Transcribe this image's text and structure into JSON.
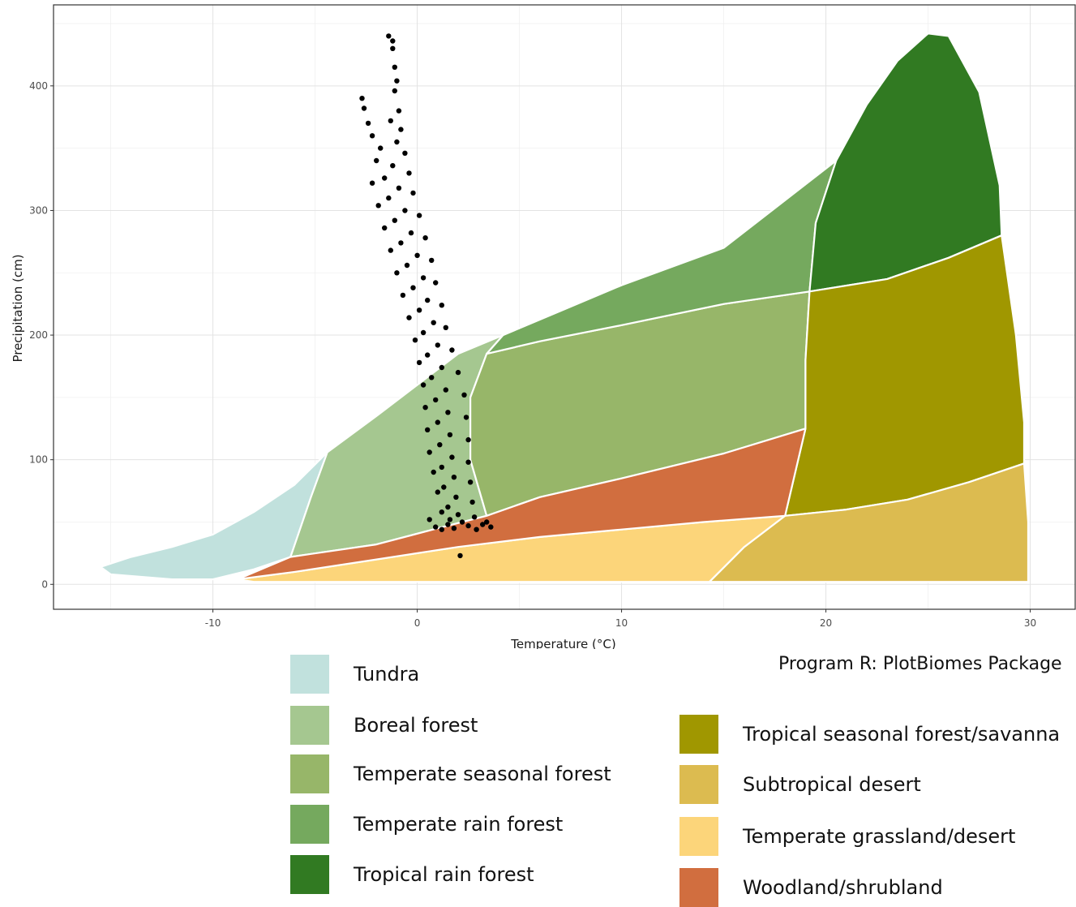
{
  "chart_data": {
    "type": "scatter",
    "xlabel": "Temperature (°C)",
    "ylabel": "Precipitation (cm)",
    "xlim": [
      -17.8,
      32.2
    ],
    "ylim": [
      -20,
      465
    ],
    "x_ticks": [
      -10,
      0,
      10,
      20,
      30
    ],
    "y_ticks": [
      0,
      100,
      200,
      300,
      400
    ],
    "grid": true,
    "legend_position": "bottom",
    "biomes": [
      {
        "name": "Tundra",
        "color": "#C1E1DD",
        "polygon": [
          [
            -15.5,
            14
          ],
          [
            -14,
            22
          ],
          [
            -12,
            30
          ],
          [
            -10,
            40
          ],
          [
            -8,
            58
          ],
          [
            -6,
            80
          ],
          [
            -4.4,
            106
          ],
          [
            -5.2,
            70
          ],
          [
            -6.2,
            22
          ],
          [
            -8,
            12
          ],
          [
            -10,
            4
          ],
          [
            -12,
            4
          ],
          [
            -15,
            8
          ]
        ]
      },
      {
        "name": "Boreal forest",
        "color": "#A5C790",
        "polygon": [
          [
            -4.4,
            106
          ],
          [
            -2,
            135
          ],
          [
            0,
            160
          ],
          [
            2,
            185
          ],
          [
            4.2,
            200
          ],
          [
            3.4,
            185
          ],
          [
            2.6,
            150
          ],
          [
            2.6,
            100
          ],
          [
            3.4,
            55
          ],
          [
            1,
            45
          ],
          [
            -2,
            32
          ],
          [
            -6.2,
            22
          ],
          [
            -5.2,
            70
          ]
        ]
      },
      {
        "name": "Temperate seasonal forest",
        "color": "#97B669",
        "polygon": [
          [
            3.4,
            185
          ],
          [
            6,
            195
          ],
          [
            10,
            208
          ],
          [
            15,
            225
          ],
          [
            19.2,
            235
          ],
          [
            19,
            180
          ],
          [
            19,
            125
          ],
          [
            15,
            105
          ],
          [
            10,
            85
          ],
          [
            6,
            70
          ],
          [
            3.4,
            55
          ],
          [
            2.6,
            100
          ],
          [
            2.6,
            150
          ]
        ]
      },
      {
        "name": "Temperate rain forest",
        "color": "#75A95E",
        "polygon": [
          [
            4.2,
            200
          ],
          [
            10,
            240
          ],
          [
            15,
            270
          ],
          [
            20.5,
            340
          ],
          [
            19.5,
            290
          ],
          [
            19.2,
            235
          ],
          [
            15,
            225
          ],
          [
            10,
            208
          ],
          [
            6,
            195
          ],
          [
            3.4,
            185
          ]
        ]
      },
      {
        "name": "Tropical rain forest",
        "color": "#317A22",
        "polygon": [
          [
            20.5,
            340
          ],
          [
            22,
            385
          ],
          [
            23.5,
            420
          ],
          [
            25,
            442
          ],
          [
            26,
            440
          ],
          [
            27.5,
            395
          ],
          [
            28.5,
            320
          ],
          [
            28.6,
            280
          ],
          [
            26,
            262
          ],
          [
            23,
            245
          ],
          [
            19.2,
            235
          ],
          [
            19.5,
            290
          ]
        ]
      },
      {
        "name": "Tropical seasonal forest/savanna",
        "color": "#A09700",
        "polygon": [
          [
            19.2,
            235
          ],
          [
            23,
            245
          ],
          [
            26,
            262
          ],
          [
            28.6,
            280
          ],
          [
            29.3,
            200
          ],
          [
            29.7,
            130
          ],
          [
            29.7,
            97
          ],
          [
            27,
            82
          ],
          [
            24,
            68
          ],
          [
            21,
            60
          ],
          [
            18,
            55
          ],
          [
            19,
            125
          ],
          [
            19,
            180
          ]
        ]
      },
      {
        "name": "Subtropical desert",
        "color": "#DCBB50",
        "polygon": [
          [
            18,
            55
          ],
          [
            21,
            60
          ],
          [
            24,
            68
          ],
          [
            27,
            82
          ],
          [
            29.7,
            97
          ],
          [
            29.9,
            50
          ],
          [
            29.9,
            2
          ],
          [
            25,
            2
          ],
          [
            20,
            2
          ],
          [
            14.3,
            2
          ],
          [
            16,
            30
          ]
        ]
      },
      {
        "name": "Temperate grassland/desert",
        "color": "#FCD57A",
        "polygon": [
          [
            -8.8,
            4
          ],
          [
            -6,
            10
          ],
          [
            -2,
            20
          ],
          [
            2,
            30
          ],
          [
            6,
            38
          ],
          [
            10,
            44
          ],
          [
            14,
            50
          ],
          [
            18,
            55
          ],
          [
            16,
            30
          ],
          [
            14.3,
            2
          ],
          [
            8,
            2
          ],
          [
            0,
            2
          ],
          [
            -8,
            2
          ]
        ]
      },
      {
        "name": "Woodland/shrubland",
        "color": "#D16E3F",
        "polygon": [
          [
            -8.8,
            4
          ],
          [
            -6.2,
            22
          ],
          [
            -2,
            32
          ],
          [
            1,
            45
          ],
          [
            3.4,
            55
          ],
          [
            6,
            70
          ],
          [
            10,
            85
          ],
          [
            15,
            105
          ],
          [
            19,
            125
          ],
          [
            18,
            55
          ],
          [
            14,
            50
          ],
          [
            10,
            44
          ],
          [
            6,
            38
          ],
          [
            2,
            30
          ],
          [
            -2,
            20
          ],
          [
            -6,
            10
          ]
        ]
      }
    ],
    "scatter": {
      "color": "#000000",
      "points": [
        [
          -1.4,
          440
        ],
        [
          -1.2,
          436
        ],
        [
          -1.2,
          430
        ],
        [
          -1.1,
          415
        ],
        [
          -1.0,
          404
        ],
        [
          -1.1,
          396
        ],
        [
          -2.7,
          390
        ],
        [
          -2.6,
          382
        ],
        [
          -0.9,
          380
        ],
        [
          -1.3,
          372
        ],
        [
          -2.4,
          370
        ],
        [
          -0.8,
          365
        ],
        [
          -2.2,
          360
        ],
        [
          -1.0,
          355
        ],
        [
          -1.8,
          350
        ],
        [
          -0.6,
          346
        ],
        [
          -2.0,
          340
        ],
        [
          -1.2,
          336
        ],
        [
          -0.4,
          330
        ],
        [
          -1.6,
          326
        ],
        [
          -2.2,
          322
        ],
        [
          -0.9,
          318
        ],
        [
          -0.2,
          314
        ],
        [
          -1.4,
          310
        ],
        [
          -1.9,
          304
        ],
        [
          -0.6,
          300
        ],
        [
          0.1,
          296
        ],
        [
          -1.1,
          292
        ],
        [
          -1.6,
          286
        ],
        [
          -0.3,
          282
        ],
        [
          0.4,
          278
        ],
        [
          -0.8,
          274
        ],
        [
          -1.3,
          268
        ],
        [
          0.0,
          264
        ],
        [
          0.7,
          260
        ],
        [
          -0.5,
          256
        ],
        [
          -1.0,
          250
        ],
        [
          0.3,
          246
        ],
        [
          0.9,
          242
        ],
        [
          -0.2,
          238
        ],
        [
          -0.7,
          232
        ],
        [
          0.5,
          228
        ],
        [
          1.2,
          224
        ],
        [
          0.1,
          220
        ],
        [
          -0.4,
          214
        ],
        [
          0.8,
          210
        ],
        [
          1.4,
          206
        ],
        [
          0.3,
          202
        ],
        [
          -0.1,
          196
        ],
        [
          1.0,
          192
        ],
        [
          1.7,
          188
        ],
        [
          0.5,
          184
        ],
        [
          0.1,
          178
        ],
        [
          1.2,
          174
        ],
        [
          2.0,
          170
        ],
        [
          0.7,
          166
        ],
        [
          0.3,
          160
        ],
        [
          1.4,
          156
        ],
        [
          2.3,
          152
        ],
        [
          0.9,
          148
        ],
        [
          0.4,
          142
        ],
        [
          1.5,
          138
        ],
        [
          2.4,
          134
        ],
        [
          1.0,
          130
        ],
        [
          0.5,
          124
        ],
        [
          1.6,
          120
        ],
        [
          2.5,
          116
        ],
        [
          1.1,
          112
        ],
        [
          0.6,
          106
        ],
        [
          1.7,
          102
        ],
        [
          2.5,
          98
        ],
        [
          1.2,
          94
        ],
        [
          0.8,
          90
        ],
        [
          1.8,
          86
        ],
        [
          2.6,
          82
        ],
        [
          1.3,
          78
        ],
        [
          1.0,
          74
        ],
        [
          1.9,
          70
        ],
        [
          2.7,
          66
        ],
        [
          1.5,
          62
        ],
        [
          1.2,
          58
        ],
        [
          2.0,
          56
        ],
        [
          2.8,
          54
        ],
        [
          0.6,
          52
        ],
        [
          3.4,
          50
        ],
        [
          1.5,
          48
        ],
        [
          2.5,
          47
        ],
        [
          0.9,
          46
        ],
        [
          3.6,
          46
        ],
        [
          1.8,
          45
        ],
        [
          2.9,
          44
        ],
        [
          1.2,
          44
        ],
        [
          3.2,
          48
        ],
        [
          2.2,
          50
        ],
        [
          1.6,
          52
        ],
        [
          2.1,
          23
        ]
      ]
    }
  },
  "legend": {
    "items": [
      {
        "label": "Tundra",
        "color": "#C1E1DD"
      },
      {
        "label": "Boreal forest",
        "color": "#A5C790"
      },
      {
        "label": "Temperate seasonal forest",
        "color": "#97B669"
      },
      {
        "label": "Temperate rain forest",
        "color": "#75A95E"
      },
      {
        "label": "Tropical rain forest",
        "color": "#317A22"
      },
      {
        "label": "Tropical seasonal forest/savanna",
        "color": "#A09700"
      },
      {
        "label": "Subtropical desert",
        "color": "#DCBB50"
      },
      {
        "label": "Temperate grassland/desert",
        "color": "#FCD57A"
      },
      {
        "label": "Woodland/shrubland",
        "color": "#D16E3F"
      }
    ]
  },
  "source_note": "Program R: PlotBiomes Package"
}
